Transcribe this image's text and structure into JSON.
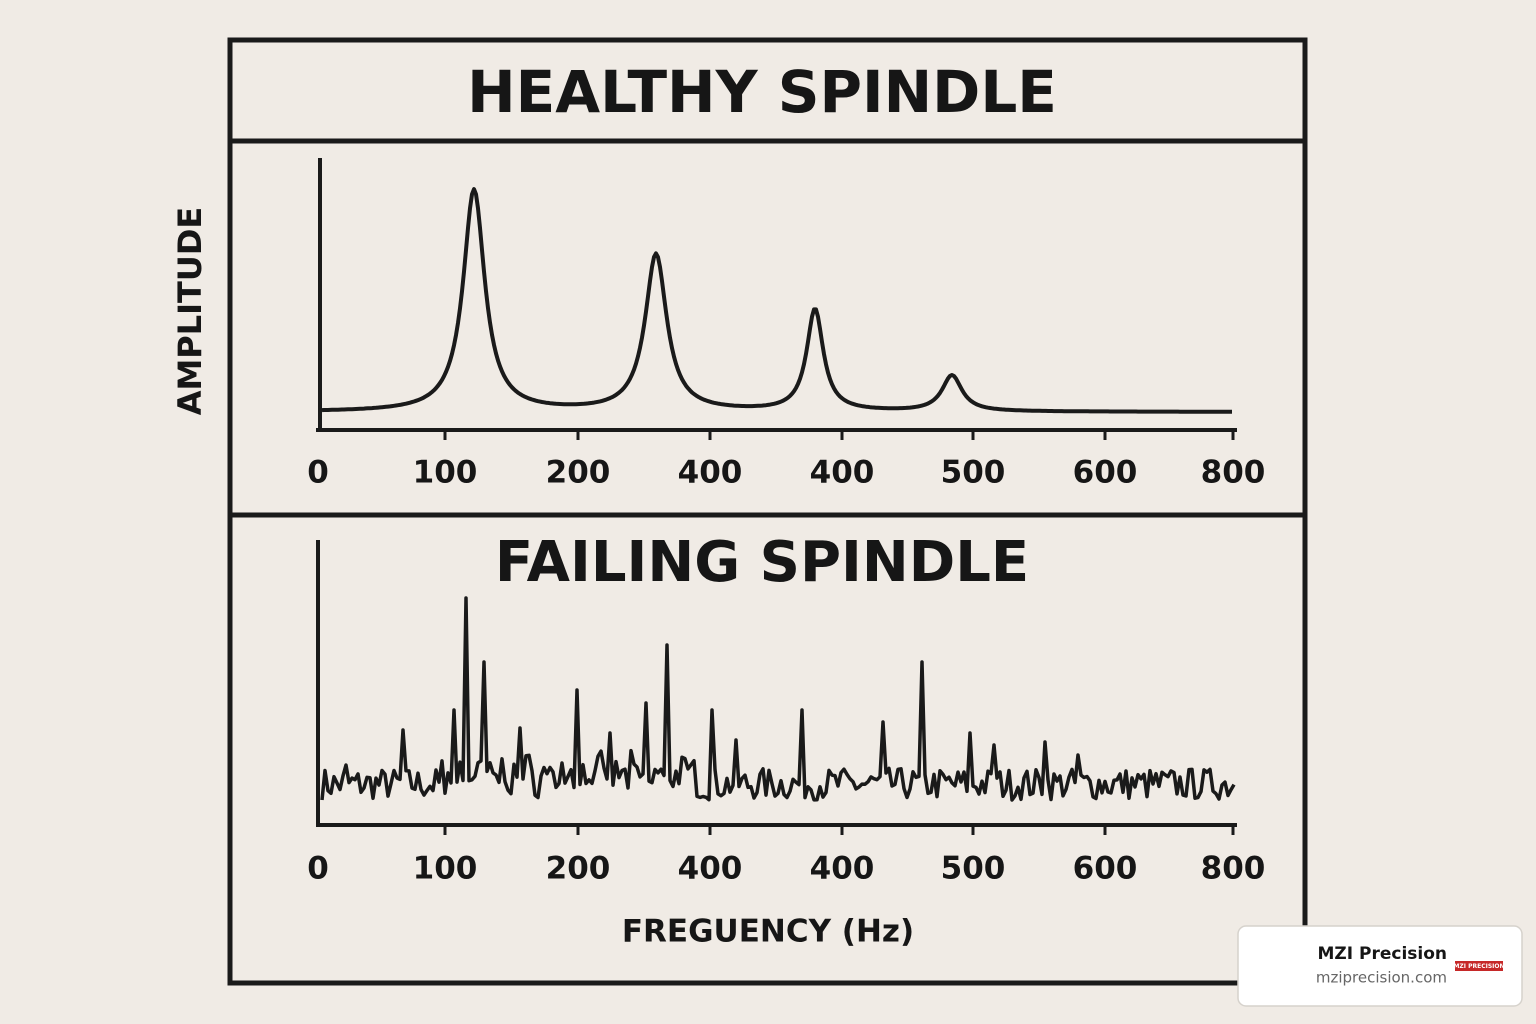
{
  "header": {
    "title": "HEALTHY SPINDLE"
  },
  "y_axis_label": "AMPLITUDE",
  "panels": [
    {
      "title": null,
      "x_tick_labels": [
        "0",
        "100",
        "200",
        "400",
        "400",
        "500",
        "600",
        "800"
      ]
    },
    {
      "title": "FAILING SPINDLE",
      "x_tick_labels": [
        "0",
        "100",
        "200",
        "400",
        "400",
        "500",
        "600",
        "800"
      ]
    }
  ],
  "x_axis_label": "FREGUENCY (Hz)",
  "badge": {
    "name": "MZI Precision",
    "url": "mziprecision.com",
    "logo": "MZI PRECISION"
  }
}
